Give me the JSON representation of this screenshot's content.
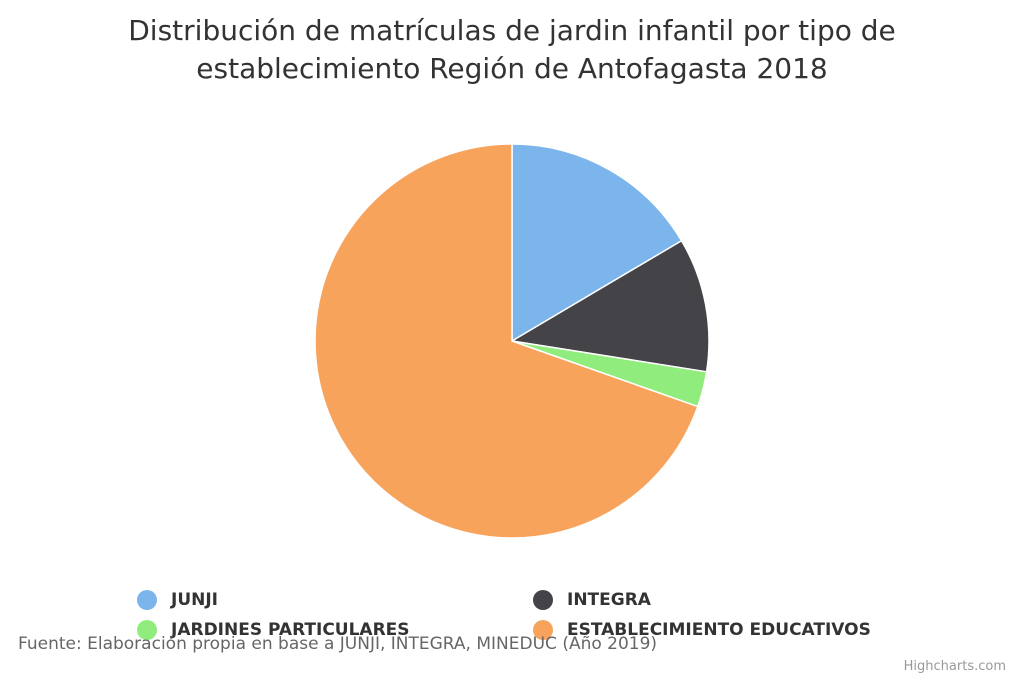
{
  "chart_data": {
    "type": "pie",
    "title_lines": [
      "Distribución de matrículas de jardin infantil por tipo de",
      "establecimiento Región de Antofagasta 2018"
    ],
    "categories": [
      "JUNJI",
      "INTEGRA",
      "JARDINES PARTICULARES",
      "ESTABLECIMIENTO EDUCATIVOS"
    ],
    "values": [
      16.5,
      11.0,
      2.9,
      69.6
    ],
    "colors": [
      "#7cb5ec",
      "#434348",
      "#90ed7d",
      "#f7a35c"
    ],
    "legend_position": "bottom"
  },
  "caption": "Fuente: Elaboración propia en base a JUNJI, INTEGRA, MINEDUC (Año 2019)",
  "credits": "Highcharts.com"
}
